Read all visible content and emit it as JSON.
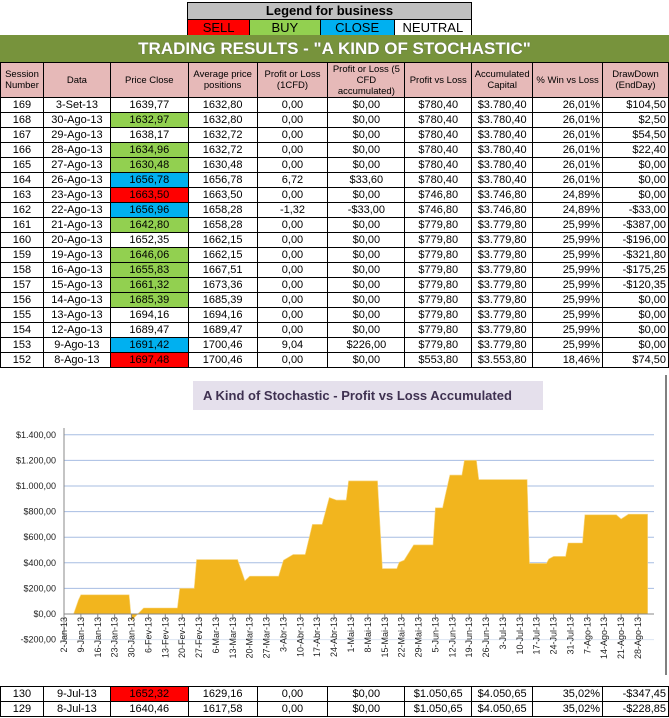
{
  "legend": {
    "title": "Legend for business",
    "items": [
      {
        "label": "SELL",
        "color": "#ff0000"
      },
      {
        "label": "BUY",
        "color": "#92d050"
      },
      {
        "label": "CLOSE",
        "color": "#00b0f0"
      },
      {
        "label": "NEUTRAL",
        "color": "#ffffff"
      }
    ]
  },
  "title": "TRADING RESULTS - \"A KIND OF STOCHASTIC\"",
  "columns": [
    "Session Number",
    "Data",
    "Price Close",
    "Average price positions",
    "Profit or Loss (1CFD)",
    "Profit or Loss (5 CFD accumulated)",
    "Profit vs Loss",
    "Accumulated Capital",
    "% Win vs Loss",
    "DrawDown (EndDay)"
  ],
  "rows": [
    {
      "cells": [
        "169",
        "3-Set-13",
        "1639,77",
        "1632,80",
        "0,00",
        "$0,00",
        "$780,40",
        "$3.780,40",
        "26,01%",
        "$104,50"
      ],
      "signal": "NEUTRAL"
    },
    {
      "cells": [
        "168",
        "30-Ago-13",
        "1632,97",
        "1632,80",
        "0,00",
        "$0,00",
        "$780,40",
        "$3.780,40",
        "26,01%",
        "$2,50"
      ],
      "signal": "BUY"
    },
    {
      "cells": [
        "167",
        "29-Ago-13",
        "1638,17",
        "1632,72",
        "0,00",
        "$0,00",
        "$780,40",
        "$3.780,40",
        "26,01%",
        "$54,50"
      ],
      "signal": "NEUTRAL"
    },
    {
      "cells": [
        "166",
        "28-Ago-13",
        "1634,96",
        "1632,72",
        "0,00",
        "$0,00",
        "$780,40",
        "$3.780,40",
        "26,01%",
        "$22,40"
      ],
      "signal": "BUY"
    },
    {
      "cells": [
        "165",
        "27-Ago-13",
        "1630,48",
        "1630,48",
        "0,00",
        "$0,00",
        "$780,40",
        "$3.780,40",
        "26,01%",
        "$0,00"
      ],
      "signal": "BUY"
    },
    {
      "cells": [
        "164",
        "26-Ago-13",
        "1656,78",
        "1656,78",
        "6,72",
        "$33,60",
        "$780,40",
        "$3.780,40",
        "26,01%",
        "$0,00"
      ],
      "signal": "CLOSE"
    },
    {
      "cells": [
        "163",
        "23-Ago-13",
        "1663,50",
        "1663,50",
        "0,00",
        "$0,00",
        "$746,80",
        "$3.746,80",
        "24,89%",
        "$0,00"
      ],
      "signal": "SELL"
    },
    {
      "cells": [
        "162",
        "22-Ago-13",
        "1656,96",
        "1658,28",
        "-1,32",
        "-$33,00",
        "$746,80",
        "$3.746,80",
        "24,89%",
        "-$33,00"
      ],
      "signal": "CLOSE"
    },
    {
      "cells": [
        "161",
        "21-Ago-13",
        "1642,80",
        "1658,28",
        "0,00",
        "$0,00",
        "$779,80",
        "$3.779,80",
        "25,99%",
        "-$387,00"
      ],
      "signal": "BUY"
    },
    {
      "cells": [
        "160",
        "20-Ago-13",
        "1652,35",
        "1662,15",
        "0,00",
        "$0,00",
        "$779,80",
        "$3.779,80",
        "25,99%",
        "-$196,00"
      ],
      "signal": "NEUTRAL"
    },
    {
      "cells": [
        "159",
        "19-Ago-13",
        "1646,06",
        "1662,15",
        "0,00",
        "$0,00",
        "$779,80",
        "$3.779,80",
        "25,99%",
        "-$321,80"
      ],
      "signal": "BUY"
    },
    {
      "cells": [
        "158",
        "16-Ago-13",
        "1655,83",
        "1667,51",
        "0,00",
        "$0,00",
        "$779,80",
        "$3.779,80",
        "25,99%",
        "-$175,25"
      ],
      "signal": "BUY"
    },
    {
      "cells": [
        "157",
        "15-Ago-13",
        "1661,32",
        "1673,36",
        "0,00",
        "$0,00",
        "$779,80",
        "$3.779,80",
        "25,99%",
        "-$120,35"
      ],
      "signal": "BUY"
    },
    {
      "cells": [
        "156",
        "14-Ago-13",
        "1685,39",
        "1685,39",
        "0,00",
        "$0,00",
        "$779,80",
        "$3.779,80",
        "25,99%",
        "$0,00"
      ],
      "signal": "BUY"
    },
    {
      "cells": [
        "155",
        "13-Ago-13",
        "1694,16",
        "1694,16",
        "0,00",
        "$0,00",
        "$779,80",
        "$3.779,80",
        "25,99%",
        "$0,00"
      ],
      "signal": "NEUTRAL"
    },
    {
      "cells": [
        "154",
        "12-Ago-13",
        "1689,47",
        "1689,47",
        "0,00",
        "$0,00",
        "$779,80",
        "$3.779,80",
        "25,99%",
        "$0,00"
      ],
      "signal": "NEUTRAL"
    },
    {
      "cells": [
        "153",
        "9-Ago-13",
        "1691,42",
        "1700,46",
        "9,04",
        "$226,00",
        "$779,80",
        "$3.779,80",
        "25,99%",
        "$0,00"
      ],
      "signal": "CLOSE"
    },
    {
      "cells": [
        "152",
        "8-Ago-13",
        "1697,48",
        "1700,46",
        "0,00",
        "$0,00",
        "$553,80",
        "$3.553,80",
        "18,46%",
        "$74,50"
      ],
      "signal": "SELL"
    }
  ],
  "bottom_rows": [
    {
      "cells": [
        "130",
        "9-Jul-13",
        "1652,32",
        "1629,16",
        "0,00",
        "$0,00",
        "$1.050,65",
        "$4.050,65",
        "35,02%",
        "-$347,45"
      ],
      "signal": "SELL"
    },
    {
      "cells": [
        "129",
        "8-Jul-13",
        "1640,46",
        "1617,58",
        "0,00",
        "$0,00",
        "$1.050,65",
        "$4.050,65",
        "35,02%",
        "-$228,85"
      ],
      "signal": "NEUTRAL"
    }
  ],
  "chart_data": {
    "type": "area",
    "title": "A Kind of Stochastic - Profit vs Loss Accumulated",
    "color": "#f2b51e",
    "ylim": [
      -200,
      1400
    ],
    "yticks": [
      "-$200,00",
      "$0,00",
      "$200,00",
      "$400,00",
      "$600,00",
      "$800,00",
      "$1.000,00",
      "$1.200,00",
      "$1.400,00"
    ],
    "ytick_values": [
      -200,
      0,
      200,
      400,
      600,
      800,
      1000,
      1200,
      1400
    ],
    "xlim": [
      "2013-01-02",
      "2013-09-03"
    ],
    "xticks": [
      "2-Jan-13",
      "9-Jan-13",
      "16-Jan-13",
      "23-Jan-13",
      "30-Jan-13",
      "6-Fev-13",
      "13-Fev-13",
      "20-Fev-13",
      "27-Fev-13",
      "6-Mar-13",
      "13-Mar-13",
      "20-Mar-13",
      "27-Mar-13",
      "3-Abr-13",
      "10-Abr-13",
      "17-Abr-13",
      "24-Abr-13",
      "1-Mai-13",
      "8-Mai-13",
      "15-Mai-13",
      "22-Mai-13",
      "29-Mai-13",
      "5-Jun-13",
      "12-Jun-13",
      "19-Jun-13",
      "26-Jun-13",
      "3-Jul-13",
      "10-Jul-13",
      "17-Jul-13",
      "24-Jul-13",
      "31-Jul-13",
      "7-Ago-13",
      "14-Ago-13",
      "21-Ago-13",
      "28-Ago-13"
    ],
    "grid": true,
    "points": [
      [
        "2013-01-06",
        0
      ],
      [
        "2013-01-08",
        110
      ],
      [
        "2013-01-09",
        150
      ],
      [
        "2013-01-29",
        150
      ],
      [
        "2013-01-30",
        -50
      ],
      [
        "2013-02-04",
        47
      ],
      [
        "2013-02-18",
        47
      ],
      [
        "2013-02-19",
        200
      ],
      [
        "2013-02-25",
        200
      ],
      [
        "2013-02-26",
        425
      ],
      [
        "2013-03-15",
        425
      ],
      [
        "2013-03-18",
        260
      ],
      [
        "2013-03-20",
        295
      ],
      [
        "2013-04-01",
        295
      ],
      [
        "2013-04-03",
        420
      ],
      [
        "2013-04-07",
        465
      ],
      [
        "2013-04-12",
        465
      ],
      [
        "2013-04-15",
        700
      ],
      [
        "2013-04-19",
        700
      ],
      [
        "2013-04-22",
        910
      ],
      [
        "2013-04-25",
        890
      ],
      [
        "2013-04-29",
        890
      ],
      [
        "2013-04-30",
        1040
      ],
      [
        "2013-05-12",
        1040
      ],
      [
        "2013-05-14",
        355
      ],
      [
        "2013-05-20",
        355
      ],
      [
        "2013-05-21",
        405
      ],
      [
        "2013-05-23",
        420
      ],
      [
        "2013-05-27",
        540
      ],
      [
        "2013-06-04",
        540
      ],
      [
        "2013-06-05",
        830
      ],
      [
        "2013-06-08",
        830
      ],
      [
        "2013-06-09",
        920
      ],
      [
        "2013-06-11",
        1085
      ],
      [
        "2013-06-16",
        1085
      ],
      [
        "2013-06-17",
        1200
      ],
      [
        "2013-06-22",
        1200
      ],
      [
        "2013-06-23",
        1050
      ],
      [
        "2013-07-13",
        1050
      ],
      [
        "2013-07-14",
        395
      ],
      [
        "2013-07-21",
        395
      ],
      [
        "2013-07-22",
        430
      ],
      [
        "2013-07-24",
        450
      ],
      [
        "2013-07-29",
        450
      ],
      [
        "2013-07-30",
        555
      ],
      [
        "2013-08-05",
        555
      ],
      [
        "2013-08-06",
        775
      ],
      [
        "2013-08-19",
        775
      ],
      [
        "2013-08-21",
        742
      ],
      [
        "2013-08-24",
        780
      ],
      [
        "2013-09-01",
        780
      ]
    ]
  }
}
